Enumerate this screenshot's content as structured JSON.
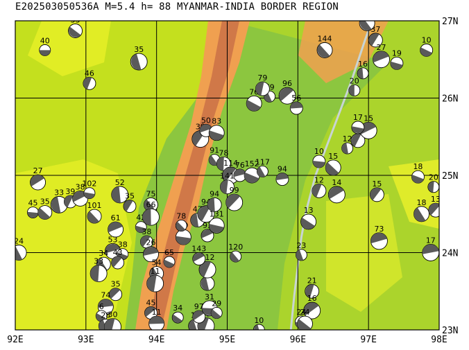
{
  "title": "E202503050536A  M=5.4  h= 88  MYANMAR-INDIA BORDER REGION",
  "axes": {
    "x_ticks": [
      "92E",
      "93E",
      "94E",
      "95E",
      "96E",
      "97E",
      "98E"
    ],
    "y_ticks": [
      "27N",
      "26N",
      "25N",
      "24N",
      "23N"
    ]
  },
  "colors": {
    "low": "#8cc63f",
    "mid": "#c4e01e",
    "yellow": "#f5f52a",
    "orange": "#f0a050",
    "high": "#d07848",
    "river": "#c8d4d4",
    "beachball": "#5a5a5a"
  },
  "map_data": {
    "type": "focal-mechanism-map",
    "lon_range": [
      92,
      98
    ],
    "lat_range": [
      23,
      27
    ],
    "grid": true,
    "events": [
      {
        "lon": 92.42,
        "lat": 26.62,
        "label": "40"
      },
      {
        "lon": 92.85,
        "lat": 26.87,
        "label": "33"
      },
      {
        "lon": 93.75,
        "lat": 26.47,
        "label": "35"
      },
      {
        "lon": 93.05,
        "lat": 26.19,
        "label": "46"
      },
      {
        "lon": 92.32,
        "lat": 24.91,
        "label": "27"
      },
      {
        "lon": 92.25,
        "lat": 24.52,
        "label": "45"
      },
      {
        "lon": 92.42,
        "lat": 24.52,
        "label": "35"
      },
      {
        "lon": 92.62,
        "lat": 24.62,
        "label": "33"
      },
      {
        "lon": 92.78,
        "lat": 24.66,
        "label": "39"
      },
      {
        "lon": 92.92,
        "lat": 24.7,
        "label": "38"
      },
      {
        "lon": 93.05,
        "lat": 24.77,
        "label": "102"
      },
      {
        "lon": 93.12,
        "lat": 24.47,
        "label": "101"
      },
      {
        "lon": 93.48,
        "lat": 24.75,
        "label": "52"
      },
      {
        "lon": 93.62,
        "lat": 24.6,
        "label": "35"
      },
      {
        "lon": 93.42,
        "lat": 24.3,
        "label": "61"
      },
      {
        "lon": 93.78,
        "lat": 24.33,
        "label": "42"
      },
      {
        "lon": 93.92,
        "lat": 24.62,
        "label": "75"
      },
      {
        "lon": 93.92,
        "lat": 24.46,
        "label": "66"
      },
      {
        "lon": 93.86,
        "lat": 24.14,
        "label": "38"
      },
      {
        "lon": 93.38,
        "lat": 24.02,
        "label": "53"
      },
      {
        "lon": 93.52,
        "lat": 23.98,
        "label": "38"
      },
      {
        "lon": 93.25,
        "lat": 23.85,
        "label": "34"
      },
      {
        "lon": 93.18,
        "lat": 23.73,
        "label": "33"
      },
      {
        "lon": 93.45,
        "lat": 23.87,
        "label": "43"
      },
      {
        "lon": 93.92,
        "lat": 23.98,
        "label": "26"
      },
      {
        "lon": 94.18,
        "lat": 23.88,
        "label": "65"
      },
      {
        "lon": 94.0,
        "lat": 23.73,
        "label": "54"
      },
      {
        "lon": 93.98,
        "lat": 23.6,
        "label": "11"
      },
      {
        "lon": 93.42,
        "lat": 23.46,
        "label": "35"
      },
      {
        "lon": 93.28,
        "lat": 23.3,
        "label": "74"
      },
      {
        "lon": 93.22,
        "lat": 23.18,
        "label": "6"
      },
      {
        "lon": 93.28,
        "lat": 23.05,
        "label": "28"
      },
      {
        "lon": 93.38,
        "lat": 23.04,
        "label": "30"
      },
      {
        "lon": 93.92,
        "lat": 23.22,
        "label": "45"
      },
      {
        "lon": 94.0,
        "lat": 23.08,
        "label": "11"
      },
      {
        "lon": 94.3,
        "lat": 23.16,
        "label": "34"
      },
      {
        "lon": 94.55,
        "lat": 23.05,
        "label": "11"
      },
      {
        "lon": 94.7,
        "lat": 23.05,
        "label": "15"
      },
      {
        "lon": 94.6,
        "lat": 23.17,
        "label": "97"
      },
      {
        "lon": 94.75,
        "lat": 23.28,
        "label": "31"
      },
      {
        "lon": 94.85,
        "lat": 23.22,
        "label": "29"
      },
      {
        "lon": 94.72,
        "lat": 23.6,
        "label": "89"
      },
      {
        "lon": 94.72,
        "lat": 23.78,
        "label": "112"
      },
      {
        "lon": 94.6,
        "lat": 23.92,
        "label": "143"
      },
      {
        "lon": 94.38,
        "lat": 24.2,
        "label": "69"
      },
      {
        "lon": 94.35,
        "lat": 24.35,
        "label": "78"
      },
      {
        "lon": 94.58,
        "lat": 24.42,
        "label": "47"
      },
      {
        "lon": 94.7,
        "lat": 24.5,
        "label": "94"
      },
      {
        "lon": 94.72,
        "lat": 24.22,
        "label": "93"
      },
      {
        "lon": 94.85,
        "lat": 24.35,
        "label": "131"
      },
      {
        "lon": 95.12,
        "lat": 23.95,
        "label": "120"
      },
      {
        "lon": 94.82,
        "lat": 24.62,
        "label": "94"
      },
      {
        "lon": 94.62,
        "lat": 25.47,
        "label": "39"
      },
      {
        "lon": 94.7,
        "lat": 25.58,
        "label": "50"
      },
      {
        "lon": 94.85,
        "lat": 25.55,
        "label": "83"
      },
      {
        "lon": 94.82,
        "lat": 25.2,
        "label": "91"
      },
      {
        "lon": 94.95,
        "lat": 25.15,
        "label": "78"
      },
      {
        "lon": 95.05,
        "lat": 25.0,
        "label": "114"
      },
      {
        "lon": 95.18,
        "lat": 25.0,
        "label": "76"
      },
      {
        "lon": 95.35,
        "lat": 25.0,
        "label": "152"
      },
      {
        "lon": 95.5,
        "lat": 25.05,
        "label": "117"
      },
      {
        "lon": 95.0,
        "lat": 24.85,
        "label": "141"
      },
      {
        "lon": 95.1,
        "lat": 24.65,
        "label": "99"
      },
      {
        "lon": 95.78,
        "lat": 24.95,
        "label": "94"
      },
      {
        "lon": 95.38,
        "lat": 25.93,
        "label": "76"
      },
      {
        "lon": 95.6,
        "lat": 26.02,
        "label": "79"
      },
      {
        "lon": 95.5,
        "lat": 26.12,
        "label": "79"
      },
      {
        "lon": 95.85,
        "lat": 26.03,
        "label": "96"
      },
      {
        "lon": 95.98,
        "lat": 25.87,
        "label": "56"
      },
      {
        "lon": 96.15,
        "lat": 24.4,
        "label": "13"
      },
      {
        "lon": 96.05,
        "lat": 23.97,
        "label": "23"
      },
      {
        "lon": 96.2,
        "lat": 23.5,
        "label": "21"
      },
      {
        "lon": 96.2,
        "lat": 23.25,
        "label": "16"
      },
      {
        "lon": 96.05,
        "lat": 23.1,
        "label": "24"
      },
      {
        "lon": 96.1,
        "lat": 23.08,
        "label": "24"
      },
      {
        "lon": 95.45,
        "lat": 23.0,
        "label": "10"
      },
      {
        "lon": 96.3,
        "lat": 24.8,
        "label": "12"
      },
      {
        "lon": 96.55,
        "lat": 24.75,
        "label": "14"
      },
      {
        "lon": 96.3,
        "lat": 25.18,
        "label": "10"
      },
      {
        "lon": 96.5,
        "lat": 25.1,
        "label": "15"
      },
      {
        "lon": 96.7,
        "lat": 25.35,
        "label": "12"
      },
      {
        "lon": 96.85,
        "lat": 25.45,
        "label": "16"
      },
      {
        "lon": 97.0,
        "lat": 25.58,
        "label": "15"
      },
      {
        "lon": 96.85,
        "lat": 25.62,
        "label": "17"
      },
      {
        "lon": 96.38,
        "lat": 26.62,
        "label": "144"
      },
      {
        "lon": 96.92,
        "lat": 26.32,
        "label": "16"
      },
      {
        "lon": 97.1,
        "lat": 26.75,
        "label": "37"
      },
      {
        "lon": 97.18,
        "lat": 26.5,
        "label": "27"
      },
      {
        "lon": 97.4,
        "lat": 26.45,
        "label": "19"
      },
      {
        "lon": 96.98,
        "lat": 26.97,
        "label": "22"
      },
      {
        "lon": 96.8,
        "lat": 26.1,
        "label": "20"
      },
      {
        "lon": 97.12,
        "lat": 24.75,
        "label": "15"
      },
      {
        "lon": 97.15,
        "lat": 24.15,
        "label": "73"
      },
      {
        "lon": 97.7,
        "lat": 24.98,
        "label": "18"
      },
      {
        "lon": 97.75,
        "lat": 24.5,
        "label": "18"
      },
      {
        "lon": 97.92,
        "lat": 24.85,
        "label": "20"
      },
      {
        "lon": 97.95,
        "lat": 24.55,
        "label": "13"
      },
      {
        "lon": 97.88,
        "lat": 24.0,
        "label": "17"
      },
      {
        "lon": 97.82,
        "lat": 26.62,
        "label": "10"
      },
      {
        "lon": 92.05,
        "lat": 24.0,
        "label": "24"
      }
    ],
    "fault_trace": [
      [
        95.9,
        23.0
      ],
      [
        95.95,
        23.45
      ],
      [
        96.05,
        24.2
      ],
      [
        96.12,
        24.55
      ],
      [
        96.25,
        25.0
      ],
      [
        96.5,
        25.6
      ],
      [
        96.75,
        26.2
      ],
      [
        96.95,
        26.75
      ],
      [
        97.05,
        27.0
      ]
    ]
  }
}
